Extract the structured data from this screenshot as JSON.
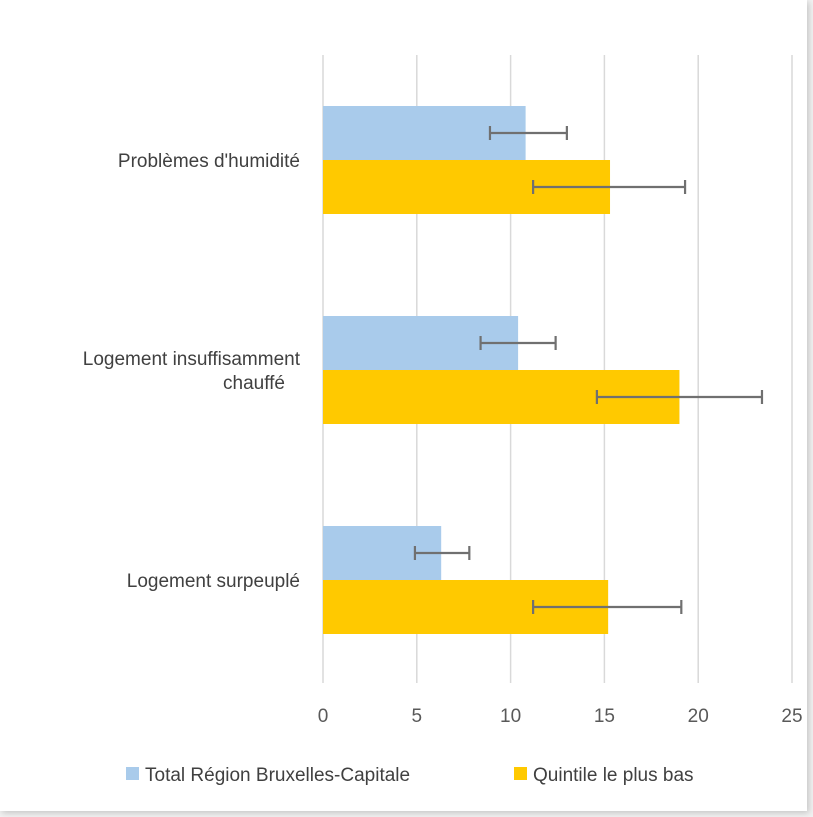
{
  "chart_data": {
    "type": "bar",
    "orientation": "horizontal",
    "categories": [
      [
        "Problèmes d'humidité"
      ],
      [
        "Logement insuffisamment",
        "chauffé"
      ],
      [
        "Logement surpeuplé"
      ]
    ],
    "series": [
      {
        "name": "Total Région Bruxelles-Capitale",
        "color": "#a9cbeb",
        "values": [
          10.8,
          10.4,
          6.3
        ],
        "error_low": [
          8.9,
          8.4,
          4.9
        ],
        "error_high": [
          13.0,
          12.4,
          7.8
        ]
      },
      {
        "name": "Quintile le plus bas",
        "color": "#ffc900",
        "values": [
          15.3,
          19.0,
          15.2
        ],
        "error_low": [
          11.2,
          14.6,
          11.2
        ],
        "error_high": [
          19.3,
          23.4,
          19.1
        ]
      }
    ],
    "xlim": [
      0,
      25
    ],
    "xticks": [
      "0",
      "5",
      "10",
      "15",
      "20",
      "25"
    ],
    "grid": true,
    "legend_position": "bottom",
    "gridline_color": "#d9d9d9",
    "errorbar_color": "#707070"
  }
}
